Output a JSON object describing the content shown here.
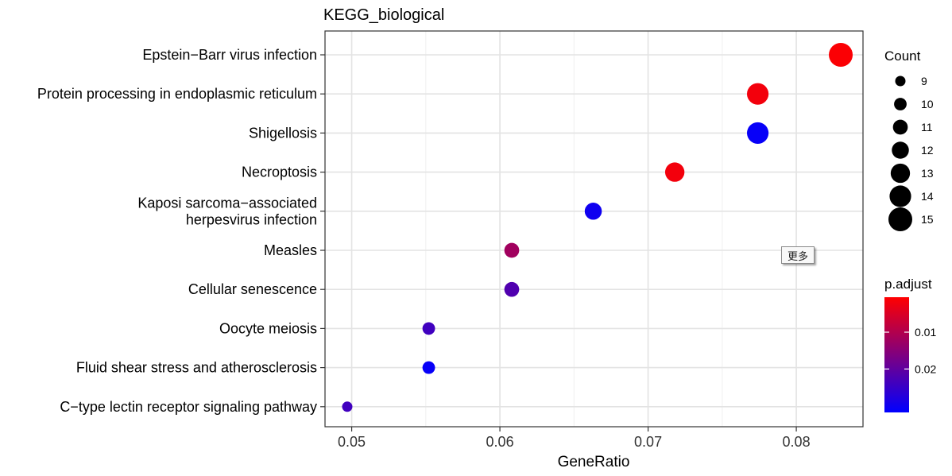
{
  "chart_data": {
    "type": "scatter",
    "title": "KEGG_biological",
    "xlabel": "GeneRatio",
    "ylabel": "",
    "xlim": [
      0.0482,
      0.0845
    ],
    "x_ticks": [
      0.05,
      0.06,
      0.07,
      0.08
    ],
    "x_tick_labels": [
      "0.05",
      "0.06",
      "0.07",
      "0.08"
    ],
    "grid": true,
    "categories": [
      [
        "Epstein−Barr virus infection"
      ],
      [
        "Protein processing in endoplasmic reticulum"
      ],
      [
        "Shigellosis"
      ],
      [
        "Necroptosis"
      ],
      [
        "Kaposi sarcoma−associated",
        "herpesvirus infection"
      ],
      [
        "Measles"
      ],
      [
        "Cellular senescence"
      ],
      [
        "Oocyte meiosis"
      ],
      [
        "Fluid shear stress and atherosclerosis"
      ],
      [
        "C−type lectin receptor signaling pathway"
      ]
    ],
    "points": [
      {
        "x": 0.083,
        "count": 15,
        "p_adjust": 0.001
      },
      {
        "x": 0.0774,
        "count": 14,
        "p_adjust": 0.002
      },
      {
        "x": 0.0774,
        "count": 14,
        "p_adjust": 0.031
      },
      {
        "x": 0.0718,
        "count": 13,
        "p_adjust": 0.002
      },
      {
        "x": 0.0663,
        "count": 12,
        "p_adjust": 0.03
      },
      {
        "x": 0.0608,
        "count": 11,
        "p_adjust": 0.012
      },
      {
        "x": 0.0608,
        "count": 11,
        "p_adjust": 0.022
      },
      {
        "x": 0.0552,
        "count": 10,
        "p_adjust": 0.024
      },
      {
        "x": 0.0552,
        "count": 10,
        "p_adjust": 0.031
      },
      {
        "x": 0.0497,
        "count": 9,
        "p_adjust": 0.024
      }
    ],
    "size_legend": {
      "title": "Count",
      "values": [
        9,
        10,
        11,
        12,
        13,
        14,
        15
      ]
    },
    "color_legend": {
      "title": "p.adjust",
      "range": [
        0.0005,
        0.0318
      ],
      "ticks": [
        0.01,
        0.02
      ],
      "tick_labels": [
        "0.01",
        "0.02"
      ],
      "low_color": "#ff0000",
      "high_color": "#0000ff",
      "low_value_at": "top"
    },
    "legend_position": "right"
  },
  "overlay": {
    "more_label": "更多"
  }
}
